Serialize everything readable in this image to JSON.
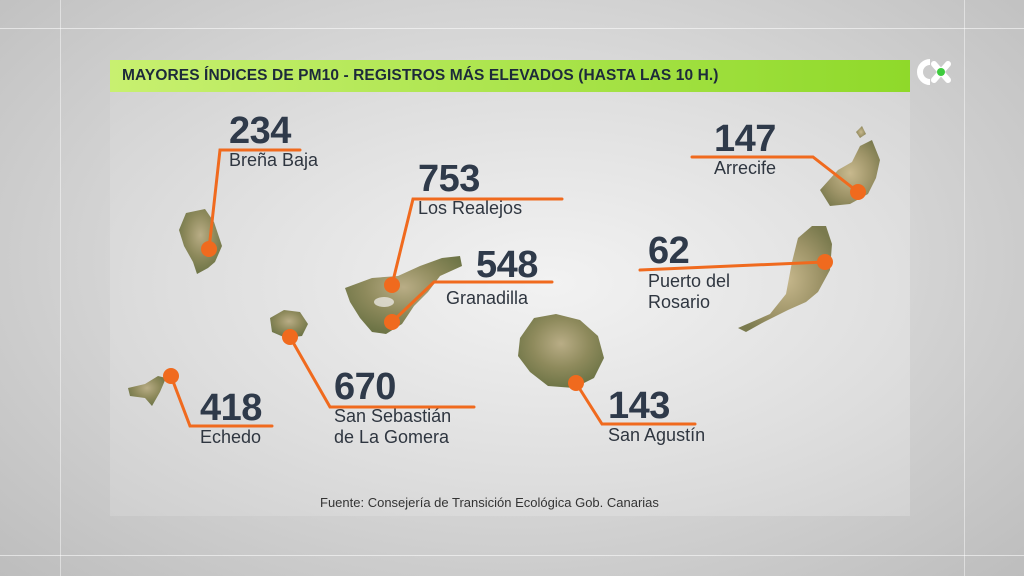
{
  "title": "MAYORES ÍNDICES DE PM10 - REGISTROS MÁS ELEVADOS (HASTA LAS 10 H.)",
  "source": "Fuente: Consejería de Transición Ecológica Gob. Canarias",
  "logo_icon": "channel-logo-icon",
  "colors": {
    "accent_bar": "#8fd92a",
    "marker": "#f06a1e",
    "line": "#f06a1e",
    "text": "#2f3a4a"
  },
  "stations": [
    {
      "id": "brena-baja",
      "value": "234",
      "place_lines": [
        "Breña Baja"
      ]
    },
    {
      "id": "los-realejos",
      "value": "753",
      "place_lines": [
        "Los Realejos"
      ]
    },
    {
      "id": "granadilla",
      "value": "548",
      "place_lines": [
        "Granadilla"
      ]
    },
    {
      "id": "san-sebastian",
      "value": "670",
      "place_lines": [
        "San Sebastián",
        "de La Gomera"
      ]
    },
    {
      "id": "echedo",
      "value": "418",
      "place_lines": [
        "Echedo"
      ]
    },
    {
      "id": "san-agustin",
      "value": "143",
      "place_lines": [
        "San Agustín"
      ]
    },
    {
      "id": "puerto-rosario",
      "value": "62",
      "place_lines": [
        "Puerto del",
        "Rosario"
      ]
    },
    {
      "id": "arrecife",
      "value": "147",
      "place_lines": [
        "Arrecife"
      ]
    }
  ]
}
